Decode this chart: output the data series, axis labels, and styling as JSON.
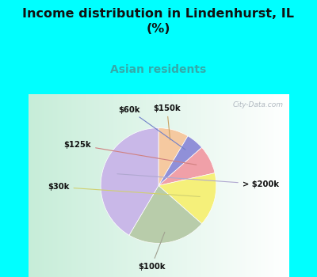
{
  "title": "Income distribution in Lindenhurst, IL\n(%)",
  "subtitle": "Asian residents",
  "title_color": "#111111",
  "subtitle_color": "#33aaaa",
  "bg_cyan": "#00ffff",
  "bg_chart_left": "#c8f0d8",
  "bg_chart_right": "#eef5f8",
  "labels": [
    "$150k",
    "$60k",
    "$125k",
    "$30k",
    "$100k",
    "> $200k"
  ],
  "values": [
    8.5,
    5.0,
    8.0,
    15.0,
    22.0,
    41.5
  ],
  "colors": [
    "#f5c9a0",
    "#9090d8",
    "#f0a0a8",
    "#f5f07a",
    "#b8ccaa",
    "#c9b8e8"
  ],
  "figsize": [
    4.0,
    3.5
  ],
  "dpi": 100
}
